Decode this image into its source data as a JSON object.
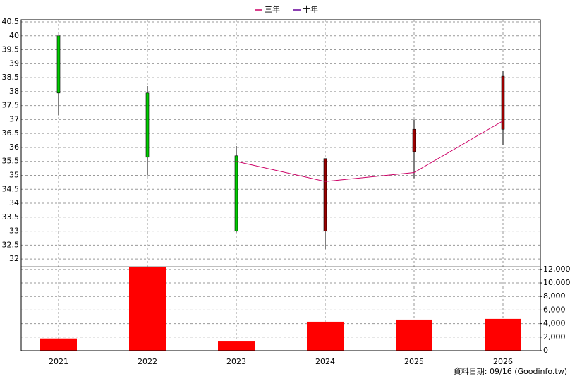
{
  "chart_data": [
    {
      "type": "candlestick",
      "x": [
        "2021",
        "2022",
        "2023",
        "2024",
        "2025",
        "2026"
      ],
      "open": [
        40.0,
        37.95,
        35.7,
        33.0,
        35.85,
        36.65
      ],
      "high": [
        40.0,
        38.2,
        36.05,
        35.6,
        37.0,
        38.75
      ],
      "low": [
        37.15,
        35.0,
        32.95,
        32.35,
        34.9,
        36.1
      ],
      "close": [
        37.95,
        35.65,
        33.0,
        35.6,
        36.65,
        38.55
      ],
      "up_color": "#990000",
      "down_color": "#00cc00",
      "series": [
        {
          "name": "三年",
          "color": "#cc0066",
          "values": [
            null,
            null,
            35.5,
            34.78,
            35.1,
            36.95
          ]
        },
        {
          "name": "十年",
          "color": "#660099",
          "values": [
            null,
            null,
            null,
            null,
            null,
            null
          ]
        }
      ],
      "ylim": [
        31.75,
        40.5
      ],
      "yticks": [
        32,
        32.5,
        33,
        33.5,
        34,
        34.5,
        35,
        35.5,
        36,
        36.5,
        37,
        37.5,
        38,
        38.5,
        39,
        39.5,
        40,
        40.5
      ],
      "grid": true,
      "source": "資料日期: 09/16  (Goodinfo.tw)"
    },
    {
      "type": "bar",
      "categories": [
        "2021",
        "2022",
        "2023",
        "2024",
        "2025",
        "2026"
      ],
      "values": [
        1800,
        12300,
        1350,
        4280,
        4590,
        4700
      ],
      "color": "#ff0000",
      "ylim": [
        0,
        12400
      ],
      "yticks": [
        0,
        {
          "value": 2000,
          "label": "2,000"
        },
        {
          "value": 4000,
          "label": "4,000"
        },
        {
          "value": 6000,
          "label": "6,000"
        },
        {
          "value": 8000,
          "label": "8,000"
        },
        {
          "value": 10000,
          "label": "10,000"
        },
        {
          "value": 12000,
          "label": "12,000"
        }
      ],
      "grid": true
    }
  ]
}
